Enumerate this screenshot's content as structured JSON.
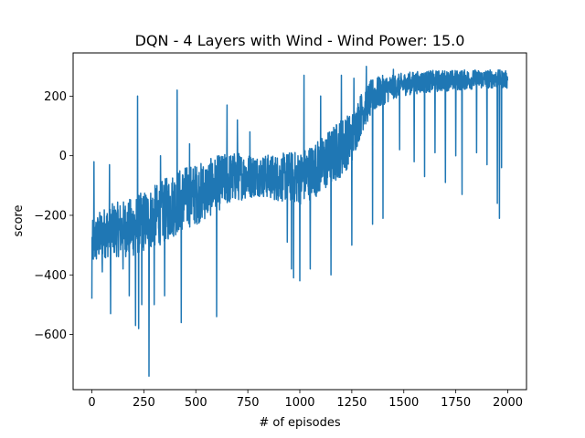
{
  "chart_data": {
    "type": "line",
    "title": "DQN - 4 Layers with Wind - Wind Power: 15.0",
    "xlabel": "# of episodes",
    "ylabel": "score",
    "xlim": [
      -90,
      2090
    ],
    "ylim": [
      -785,
      345
    ],
    "x_ticks": [
      0,
      250,
      500,
      750,
      1000,
      1250,
      1500,
      1750,
      2000
    ],
    "y_ticks": [
      -600,
      -400,
      -200,
      0,
      200
    ],
    "grid": false,
    "line_color": "#1f77b4",
    "series": [
      {
        "x_start": 0,
        "x_step": 1,
        "anchors": [
          [
            0,
            -300
          ],
          [
            50,
            -260
          ],
          [
            100,
            -250
          ],
          [
            150,
            -245
          ],
          [
            200,
            -240
          ],
          [
            250,
            -220
          ],
          [
            300,
            -205
          ],
          [
            350,
            -185
          ],
          [
            400,
            -160
          ],
          [
            450,
            -140
          ],
          [
            500,
            -130
          ],
          [
            550,
            -115
          ],
          [
            600,
            -95
          ],
          [
            650,
            -80
          ],
          [
            700,
            -70
          ],
          [
            750,
            -68
          ],
          [
            800,
            -66
          ],
          [
            850,
            -70
          ],
          [
            900,
            -75
          ],
          [
            950,
            -70
          ],
          [
            1000,
            -75
          ],
          [
            1050,
            -55
          ],
          [
            1100,
            -35
          ],
          [
            1150,
            -5
          ],
          [
            1200,
            30
          ],
          [
            1250,
            60
          ],
          [
            1300,
            150
          ],
          [
            1350,
            200
          ],
          [
            1400,
            220
          ],
          [
            1450,
            230
          ],
          [
            1500,
            240
          ],
          [
            1550,
            245
          ],
          [
            1600,
            248
          ],
          [
            1650,
            250
          ],
          [
            1700,
            252
          ],
          [
            1750,
            253
          ],
          [
            1800,
            255
          ],
          [
            1850,
            256
          ],
          [
            1900,
            258
          ],
          [
            1950,
            258
          ],
          [
            1999,
            255
          ]
        ],
        "noise": [
          [
            0,
            80
          ],
          [
            200,
            100
          ],
          [
            400,
            110
          ],
          [
            600,
            95
          ],
          [
            800,
            70
          ],
          [
            1000,
            90
          ],
          [
            1200,
            100
          ],
          [
            1300,
            70
          ],
          [
            1450,
            40
          ],
          [
            1999,
            30
          ]
        ],
        "outliers": [
          [
            0,
            -480
          ],
          [
            10,
            -20
          ],
          [
            50,
            -390
          ],
          [
            85,
            -30
          ],
          [
            90,
            -530
          ],
          [
            150,
            -380
          ],
          [
            180,
            -470
          ],
          [
            210,
            -570
          ],
          [
            220,
            200
          ],
          [
            225,
            -580
          ],
          [
            240,
            -500
          ],
          [
            275,
            -740
          ],
          [
            300,
            -500
          ],
          [
            330,
            0
          ],
          [
            350,
            -470
          ],
          [
            410,
            220
          ],
          [
            430,
            -560
          ],
          [
            470,
            40
          ],
          [
            600,
            -540
          ],
          [
            650,
            170
          ],
          [
            700,
            120
          ],
          [
            760,
            80
          ],
          [
            820,
            -110
          ],
          [
            940,
            -290
          ],
          [
            960,
            -380
          ],
          [
            970,
            -410
          ],
          [
            1000,
            -420
          ],
          [
            1020,
            270
          ],
          [
            1050,
            -380
          ],
          [
            1100,
            200
          ],
          [
            1150,
            -400
          ],
          [
            1200,
            270
          ],
          [
            1250,
            -300
          ],
          [
            1260,
            260
          ],
          [
            1320,
            300
          ],
          [
            1350,
            -230
          ],
          [
            1400,
            -210
          ],
          [
            1450,
            290
          ],
          [
            1480,
            20
          ],
          [
            1550,
            -20
          ],
          [
            1600,
            -70
          ],
          [
            1650,
            10
          ],
          [
            1700,
            -90
          ],
          [
            1750,
            0
          ],
          [
            1780,
            -130
          ],
          [
            1850,
            10
          ],
          [
            1900,
            -30
          ],
          [
            1950,
            -160
          ],
          [
            1960,
            -210
          ],
          [
            1970,
            -40
          ]
        ]
      }
    ]
  }
}
